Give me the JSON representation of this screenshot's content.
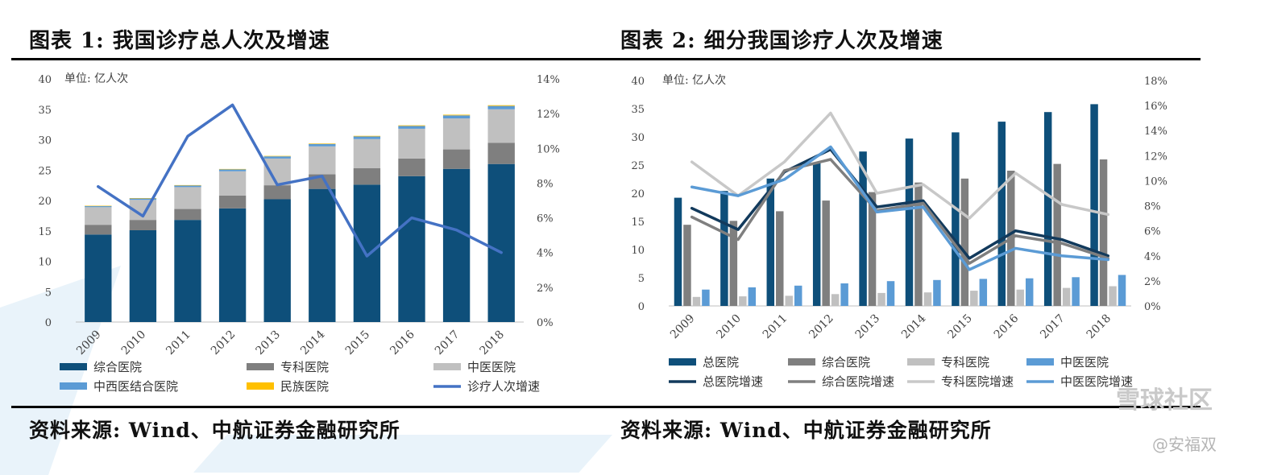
{
  "figure1": {
    "title": "图表 1: 我国诊疗总人次及增速",
    "source": "资料来源: Wind、中航证券金融研究所",
    "chart_data": {
      "type": "bar",
      "stacked": true,
      "unit_label": "单位: 亿人次",
      "categories": [
        "2009",
        "2010",
        "2011",
        "2012",
        "2013",
        "2014",
        "2015",
        "2016",
        "2017",
        "2018"
      ],
      "y_left": {
        "min": 0,
        "max": 40,
        "ticks": [
          "0",
          "5",
          "10",
          "15",
          "20",
          "25",
          "30",
          "35",
          "40"
        ]
      },
      "y_right": {
        "min": 0,
        "max": 14,
        "ticks": [
          "0%",
          "2%",
          "4%",
          "6%",
          "8%",
          "10%",
          "12%",
          "14%"
        ]
      },
      "series": [
        {
          "name": "综合医院",
          "kind": "bar",
          "color": "#0e4f7a",
          "values": [
            14.4,
            15.1,
            16.8,
            18.7,
            20.2,
            21.9,
            22.6,
            24.0,
            25.2,
            26.0
          ]
        },
        {
          "name": "专科医院",
          "kind": "bar",
          "color": "#7f7f7f",
          "values": [
            1.6,
            1.7,
            1.8,
            2.1,
            2.3,
            2.4,
            2.7,
            2.9,
            3.2,
            3.5
          ]
        },
        {
          "name": "中医医院",
          "kind": "bar",
          "color": "#c0c0c0",
          "values": [
            2.9,
            3.3,
            3.6,
            4.0,
            4.4,
            4.6,
            4.8,
            4.9,
            5.1,
            5.5
          ]
        },
        {
          "name": "中西医结合医院",
          "kind": "bar",
          "color": "#5b9bd5",
          "values": [
            0.2,
            0.25,
            0.28,
            0.32,
            0.36,
            0.4,
            0.44,
            0.46,
            0.5,
            0.55
          ]
        },
        {
          "name": "民族医院",
          "kind": "bar",
          "color": "#ffc000",
          "values": [
            0.03,
            0.04,
            0.05,
            0.06,
            0.07,
            0.08,
            0.09,
            0.1,
            0.11,
            0.12
          ]
        },
        {
          "name": "诊疗人次增速",
          "kind": "line",
          "axis": "right",
          "color": "#4472c4",
          "values": [
            7.8,
            6.1,
            10.7,
            12.5,
            7.9,
            8.4,
            3.8,
            6.0,
            5.3,
            4.0
          ]
        }
      ],
      "legend": "bottom"
    }
  },
  "figure2": {
    "title": "图表 2: 细分我国诊疗人次及增速",
    "source": "资料来源: Wind、中航证券金融研究所",
    "chart_data": {
      "type": "bar",
      "unit_label": "单位: 亿人次",
      "categories": [
        "2009",
        "2010",
        "2011",
        "2012",
        "2013",
        "2014",
        "2015",
        "2016",
        "2017",
        "2018"
      ],
      "y_left": {
        "min": 0,
        "max": 40,
        "ticks": [
          "0",
          "5",
          "10",
          "15",
          "20",
          "25",
          "30",
          "35",
          "40"
        ]
      },
      "y_right": {
        "min": 0,
        "max": 18,
        "ticks": [
          "0%",
          "2%",
          "4%",
          "6%",
          "8%",
          "10%",
          "12%",
          "14%",
          "16%",
          "18%"
        ]
      },
      "series": [
        {
          "name": "总医院",
          "kind": "bar",
          "color": "#0e4f7a",
          "values": [
            19.2,
            20.4,
            22.6,
            25.4,
            27.4,
            29.7,
            30.8,
            32.7,
            34.4,
            35.8
          ]
        },
        {
          "name": "综合医院",
          "kind": "bar",
          "color": "#7f7f7f",
          "values": [
            14.4,
            15.1,
            16.8,
            18.7,
            20.2,
            21.9,
            22.6,
            24.0,
            25.2,
            26.0
          ]
        },
        {
          "name": "专科医院",
          "kind": "bar",
          "color": "#c0c0c0",
          "values": [
            1.6,
            1.7,
            1.8,
            2.1,
            2.3,
            2.4,
            2.7,
            2.9,
            3.2,
            3.5
          ]
        },
        {
          "name": "中医医院",
          "kind": "bar",
          "color": "#5b9bd5",
          "values": [
            2.9,
            3.3,
            3.6,
            4.0,
            4.4,
            4.6,
            4.8,
            4.9,
            5.1,
            5.5
          ]
        },
        {
          "name": "总医院增速",
          "kind": "line",
          "axis": "right",
          "color": "#123a5c",
          "values": [
            7.8,
            6.1,
            10.7,
            12.5,
            7.9,
            8.4,
            3.8,
            6.0,
            5.3,
            4.0
          ]
        },
        {
          "name": "综合医院增速",
          "kind": "line",
          "axis": "right",
          "color": "#7f7f7f",
          "values": [
            7.1,
            5.3,
            10.8,
            11.7,
            7.6,
            8.2,
            3.4,
            5.6,
            5.0,
            3.8
          ]
        },
        {
          "name": "专科医院增速",
          "kind": "line",
          "axis": "right",
          "color": "#c8c8c8",
          "values": [
            11.5,
            8.8,
            11.5,
            15.4,
            9.0,
            9.7,
            7.0,
            10.6,
            8.1,
            7.3
          ]
        },
        {
          "name": "中医医院增速",
          "kind": "line",
          "axis": "right",
          "color": "#5b9bd5",
          "values": [
            9.5,
            8.8,
            10.1,
            12.7,
            7.5,
            7.9,
            2.9,
            4.6,
            4.0,
            3.7
          ]
        }
      ],
      "legend": "bottom"
    }
  },
  "watermark": {
    "site": "雪球社区",
    "author": "@安福双"
  }
}
